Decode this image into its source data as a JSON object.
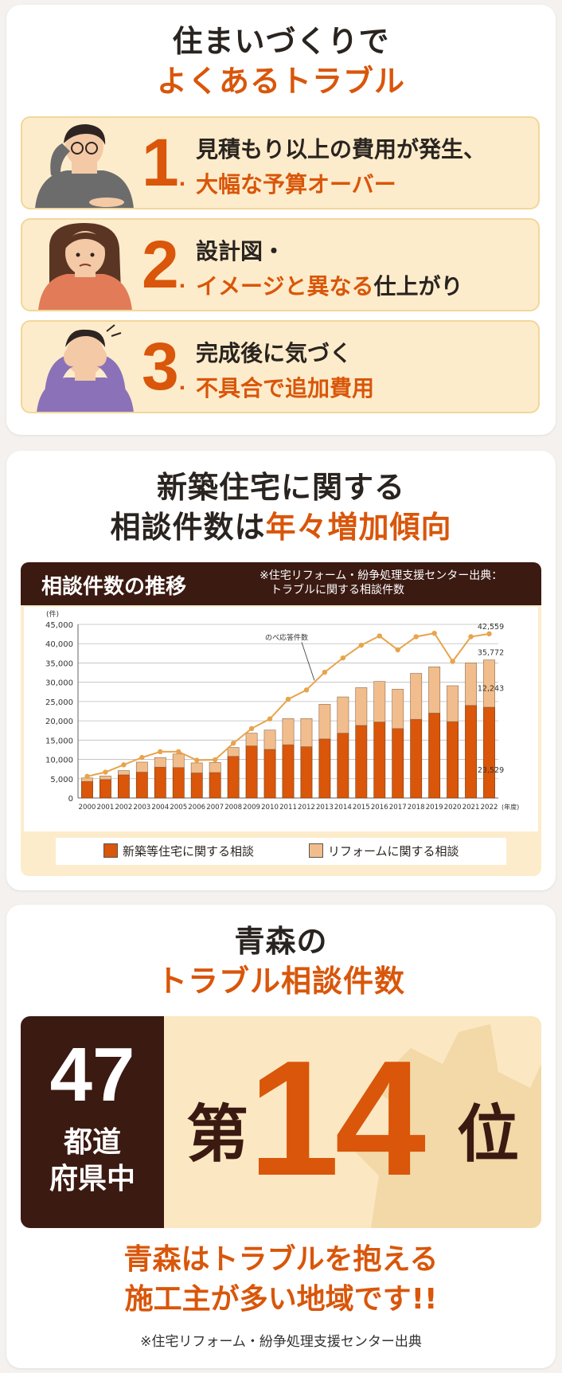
{
  "section1": {
    "title_line1": "住まいづくりで",
    "title_line2": "よくあるトラブル",
    "items": [
      {
        "number": "1",
        "line1": "見積もり以上の費用が発生、",
        "line2": "大幅な予算オーバー",
        "line2_suffix": ""
      },
      {
        "number": "2",
        "line1": "設計図・",
        "line2": "イメージと異なる",
        "line2_suffix": "仕上がり"
      },
      {
        "number": "3",
        "line1": "完成後に気づく",
        "line2": "不具合で追加費用",
        "line2_suffix": ""
      }
    ],
    "number_dot": "."
  },
  "section2": {
    "title_line1": "新築住宅に関する",
    "title_line2_dark": "相談件数は",
    "title_line2_orange": "年々増加傾向",
    "chart_title": "相談件数の推移",
    "chart_source_line1": "※住宅リフォーム・紛争処理支援センター出典：",
    "chart_source_line2": "トラブルに関する相談件数",
    "legend": [
      "新築等住宅に関する相談",
      "リフォームに関する相談"
    ]
  },
  "chart_data": {
    "type": "bar",
    "stacked": true,
    "y_unit": "(件)",
    "x_unit": "(年度)",
    "categories": [
      "2000",
      "2001",
      "2002",
      "2003",
      "2004",
      "2005",
      "2006",
      "2007",
      "2008",
      "2009",
      "2010",
      "2011",
      "2012",
      "2013",
      "2014",
      "2015",
      "2016",
      "2017",
      "2018",
      "2019",
      "2020",
      "2021",
      "2022"
    ],
    "series": [
      {
        "name": "新築等住宅に関する相談",
        "values": [
          4300,
          4800,
          6000,
          6700,
          8000,
          7900,
          6500,
          6600,
          10800,
          13500,
          12600,
          13800,
          13300,
          15300,
          16800,
          18800,
          19700,
          18000,
          20400,
          22000,
          19800,
          24000,
          23529
        ]
      },
      {
        "name": "リフォームに関する相談",
        "values": [
          900,
          900,
          1100,
          2600,
          2500,
          3500,
          2600,
          2600,
          2300,
          3300,
          5000,
          6800,
          7300,
          9000,
          9400,
          9800,
          10500,
          10200,
          11900,
          12000,
          9300,
          11000,
          12243
        ]
      }
    ],
    "line": {
      "name": "のべ応答件数",
      "values": [
        5600,
        6700,
        8600,
        10500,
        12000,
        12000,
        9800,
        9900,
        14200,
        18000,
        20500,
        25600,
        28000,
        32600,
        36300,
        39600,
        42000,
        38400,
        41800,
        42700,
        35400,
        41800,
        42559
      ]
    },
    "data_labels": {
      "line_last": "42,559",
      "total_last": "35,772",
      "reform_last": "12,243",
      "new_last": "23,529"
    },
    "ylim": [
      0,
      45000
    ],
    "yticks": [
      "0",
      "5,000",
      "10,000",
      "15,000",
      "20,000",
      "25,000",
      "30,000",
      "35,000",
      "40,000",
      "45,000"
    ],
    "grid": true,
    "colors": {
      "new": "#d9560a",
      "reform": "#f2bd8c",
      "line": "#e8a44c"
    }
  },
  "section3": {
    "title_line1": "青森の",
    "title_line2": "トラブル相談件数",
    "rank_total": "47",
    "rank_sub_line1": "都道",
    "rank_sub_line2": "府県中",
    "rank_prefix": "第",
    "rank_number": "14",
    "rank_suffix": "位",
    "closing_line1": "青森はトラブルを抱える",
    "closing_line2": "施工主が多い地域です!!",
    "note": "※住宅リフォーム・紛争処理支援センター出典"
  }
}
